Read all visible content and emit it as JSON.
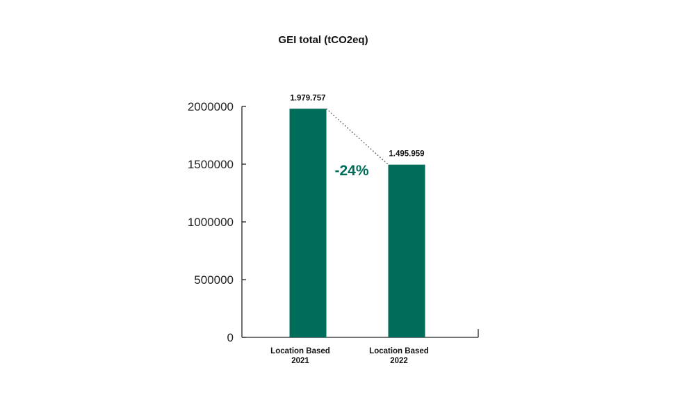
{
  "chart_data": {
    "type": "bar",
    "title": "GEI total (tCO2eq)",
    "categories": [
      [
        "Location Based",
        "2021"
      ],
      [
        "Location Based",
        "2022"
      ]
    ],
    "values": [
      1979757,
      1495959
    ],
    "data_labels": [
      "1.979.757",
      "1.495.959"
    ],
    "ylim": [
      0,
      2000000
    ],
    "yticks": [
      0,
      500000,
      1000000,
      1500000,
      2000000
    ],
    "ytick_labels": [
      "0",
      "500000",
      "1000000",
      "1500000",
      "2000000"
    ],
    "xlabel": "",
    "ylabel": "",
    "grid": false,
    "legend": "none",
    "annotation": {
      "text": "-24%",
      "type": "change-connector"
    },
    "colors": {
      "bar": "#006c5a",
      "annotation": "#006c5a",
      "axis": "#222222",
      "connector": "#555555"
    }
  }
}
